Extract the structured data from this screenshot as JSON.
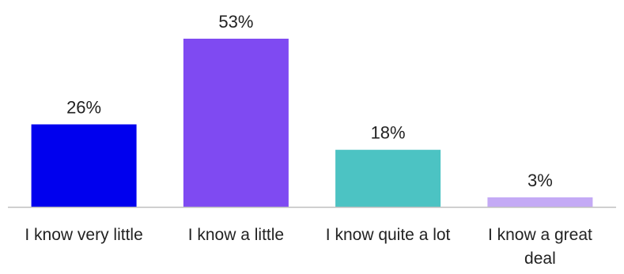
{
  "chart_data": {
    "type": "bar",
    "title": "",
    "xlabel": "",
    "ylabel": "",
    "ylim": [
      0,
      53
    ],
    "grid": false,
    "categories": [
      "I know very little",
      "I know a little",
      "I know quite a lot",
      "I know a great deal"
    ],
    "values": [
      26,
      53,
      18,
      3
    ],
    "value_labels": [
      "26%",
      "53%",
      "18%",
      "3%"
    ],
    "colors": [
      "#0000ee",
      "#7f4af2",
      "#4cc3c3",
      "#c4aaf5"
    ],
    "axis_color": "#bfbfbf"
  }
}
